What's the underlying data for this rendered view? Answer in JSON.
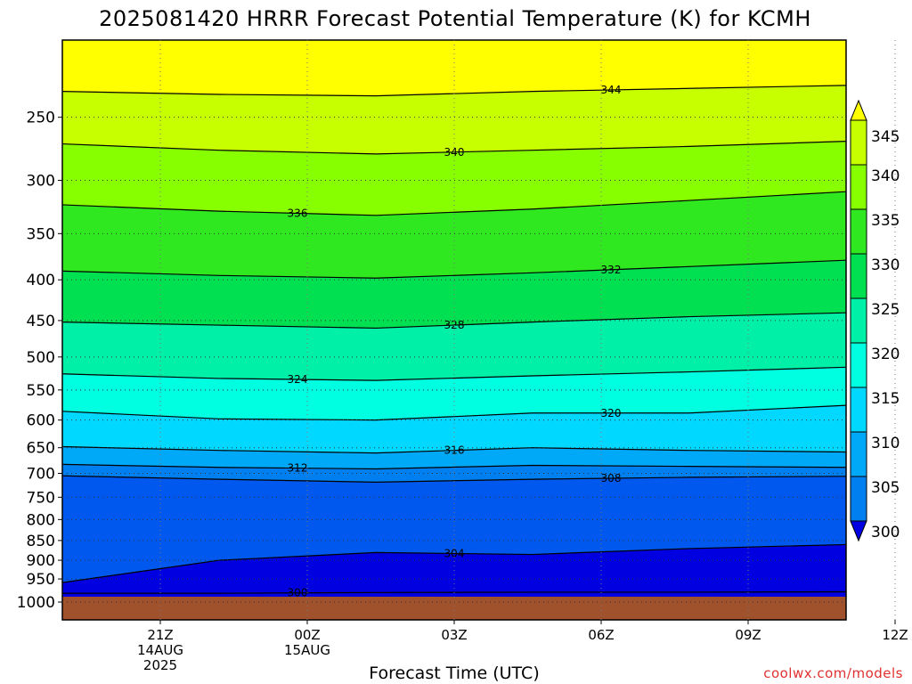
{
  "chart_data": {
    "type": "heatmap",
    "title": "2025081420 HRRR Forecast Potential Temperature (K) for KCMH",
    "xlabel": "Forecast Time (UTC)",
    "ylabel": "",
    "credit": "coolwx.com/models",
    "y_scale": "log",
    "y_inverted": true,
    "ylim": [
      1000,
      200
    ],
    "y_ticks": [
      250,
      300,
      350,
      400,
      450,
      500,
      550,
      600,
      650,
      700,
      750,
      800,
      850,
      900,
      950,
      1000
    ],
    "x_hours": [
      -2,
      14
    ],
    "x_ticks": [
      {
        "hour": 0,
        "lines": [
          "21Z",
          "14AUG",
          "2025"
        ]
      },
      {
        "hour": 3,
        "lines": [
          "00Z",
          "15AUG"
        ]
      },
      {
        "hour": 6,
        "lines": [
          "03Z"
        ]
      },
      {
        "hour": 9,
        "lines": [
          "06Z"
        ]
      },
      {
        "hour": 12,
        "lines": [
          "09Z"
        ]
      },
      {
        "hour": 15,
        "lines": [
          "12Z"
        ]
      }
    ],
    "grid": true,
    "colorbar": {
      "position": "right",
      "levels": [
        300,
        305,
        310,
        315,
        320,
        325,
        330,
        335,
        340,
        345
      ],
      "labels": [
        "345",
        "340",
        "335",
        "330",
        "325",
        "320",
        "315",
        "310",
        "305",
        "300"
      ],
      "colors": [
        "#0000e0",
        "#0058ee",
        "#0080f0",
        "#00a8f8",
        "#00d8ff",
        "#00ffe0",
        "#00f0a8",
        "#00e050",
        "#30e820",
        "#88ff00",
        "#c8ff00",
        "#ffff00"
      ]
    },
    "ground_color": "#a0522d",
    "contours": [
      {
        "value": 300,
        "label": true,
        "pressure": [
          990,
          990,
          988,
          987,
          987,
          986
        ]
      },
      {
        "value": 304,
        "label": true,
        "pressure": [
          960,
          900,
          880,
          885,
          870,
          860
        ]
      },
      {
        "value": 308,
        "label": true,
        "pressure": [
          705,
          712,
          718,
          712,
          708,
          706
        ]
      },
      {
        "value": 312,
        "label": true,
        "pressure": [
          682,
          688,
          691,
          684,
          686,
          688
        ]
      },
      {
        "value": 316,
        "label": true,
        "pressure": [
          648,
          655,
          660,
          650,
          655,
          658
        ]
      },
      {
        "value": 320,
        "label": true,
        "pressure": [
          585,
          598,
          600,
          588,
          588,
          575
        ]
      },
      {
        "value": 324,
        "label": true,
        "pressure": [
          525,
          532,
          535,
          528,
          522,
          515
        ]
      },
      {
        "value": 328,
        "label": true,
        "pressure": [
          452,
          456,
          460,
          452,
          445,
          440
        ]
      },
      {
        "value": 332,
        "label": true,
        "pressure": [
          390,
          395,
          398,
          392,
          385,
          378
        ]
      },
      {
        "value": 336,
        "label": true,
        "pressure": [
          322,
          328,
          332,
          326,
          318,
          310
        ]
      },
      {
        "value": 340,
        "label": true,
        "pressure": [
          270,
          275,
          278,
          275,
          272,
          268
        ]
      },
      {
        "value": 344,
        "label": true,
        "pressure": [
          232,
          234,
          235,
          232,
          230,
          228
        ]
      }
    ]
  }
}
